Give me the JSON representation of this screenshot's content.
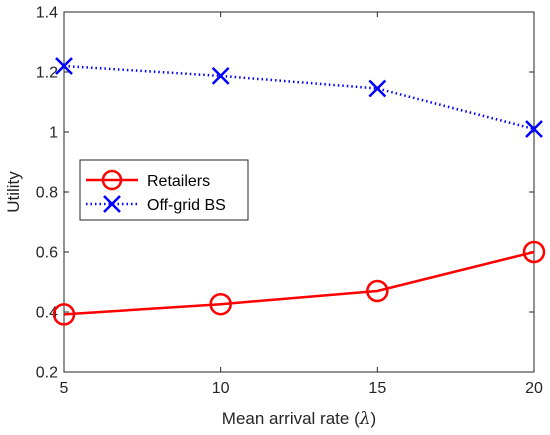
{
  "chart_data": {
    "type": "line",
    "x": [
      5,
      10,
      15,
      20
    ],
    "xlabel": "Mean arrival rate (",
    "xlabel_symbol": "λ",
    "xlabel_close": ")",
    "ylabel": "Utility",
    "xlim": [
      5,
      20
    ],
    "ylim": [
      0.2,
      1.4
    ],
    "xticks": [
      "5",
      "10",
      "15",
      "20"
    ],
    "yticks": [
      "0.2",
      "0.4",
      "0.6",
      "0.8",
      "1",
      "1.2",
      "1.4"
    ],
    "grid": false,
    "legend_position": "middle-left",
    "series": [
      {
        "name": "Retailers",
        "values": [
          0.392,
          0.426,
          0.47,
          0.6
        ],
        "color": "#ff0000",
        "line_style": "solid",
        "marker": "circle"
      },
      {
        "name": "Off-grid BS",
        "values": [
          1.22,
          1.187,
          1.145,
          1.01
        ],
        "color": "#0000ff",
        "line_style": "dotted",
        "marker": "x"
      }
    ]
  }
}
